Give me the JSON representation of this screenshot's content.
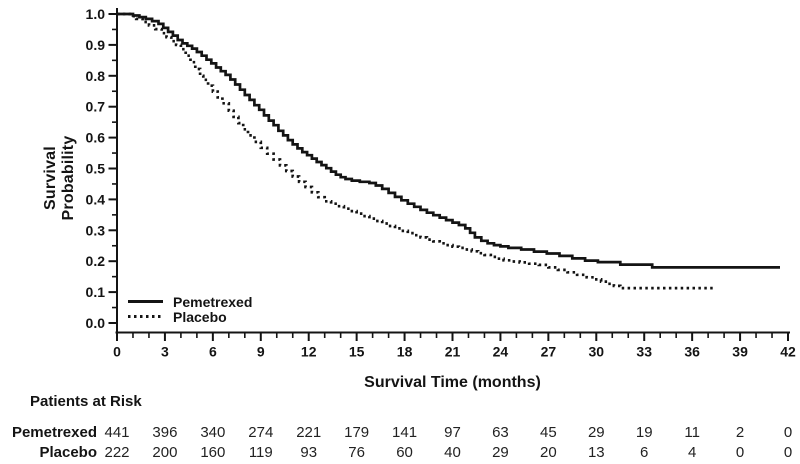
{
  "figure": {
    "background": "#ffffff",
    "ink": "#141414",
    "number_ink": "#222222"
  },
  "chart_data": {
    "type": "line",
    "subtype": "kaplan-meier-step",
    "title": "",
    "xlabel": "Survival Time (months)",
    "ylabel": "Survival Probability",
    "xlim": [
      0,
      42
    ],
    "ylim": [
      0.0,
      1.0
    ],
    "grid": false,
    "legend_position": "inside-lower-left",
    "xticks": [
      {
        "v": 0,
        "label": "0"
      },
      {
        "v": 3,
        "label": "3"
      },
      {
        "v": 6,
        "label": "6"
      },
      {
        "v": 9,
        "label": "9"
      },
      {
        "v": 12,
        "label": "12"
      },
      {
        "v": 15,
        "label": "15"
      },
      {
        "v": 18,
        "label": "18"
      },
      {
        "v": 21,
        "label": "21"
      },
      {
        "v": 24,
        "label": "24"
      },
      {
        "v": 27,
        "label": "27"
      },
      {
        "v": 30,
        "label": "30"
      },
      {
        "v": 33,
        "label": "33"
      },
      {
        "v": 36,
        "label": "36"
      },
      {
        "v": 39,
        "label": "39"
      },
      {
        "v": 42,
        "label": "42"
      }
    ],
    "yticks": [
      {
        "v": 0.0,
        "label": "0.0"
      },
      {
        "v": 0.1,
        "label": "0.1"
      },
      {
        "v": 0.2,
        "label": "0.2"
      },
      {
        "v": 0.3,
        "label": "0.3"
      },
      {
        "v": 0.4,
        "label": "0.4"
      },
      {
        "v": 0.5,
        "label": "0.5"
      },
      {
        "v": 0.6,
        "label": "0.6"
      },
      {
        "v": 0.7,
        "label": "0.7"
      },
      {
        "v": 0.8,
        "label": "0.8"
      },
      {
        "v": 0.9,
        "label": "0.9"
      },
      {
        "v": 1.0,
        "label": "1.0"
      }
    ],
    "series": [
      {
        "name": "Pemetrexed",
        "line": "solid",
        "color": "#141414",
        "points": [
          [
            0,
            1.0
          ],
          [
            0.9,
            1.0
          ],
          [
            1.0,
            0.995
          ],
          [
            1.4,
            0.99
          ],
          [
            1.8,
            0.984
          ],
          [
            2.2,
            0.977
          ],
          [
            2.6,
            0.968
          ],
          [
            2.9,
            0.955
          ],
          [
            3.2,
            0.942
          ],
          [
            3.5,
            0.93
          ],
          [
            3.8,
            0.916
          ],
          [
            4.1,
            0.905
          ],
          [
            4.4,
            0.897
          ],
          [
            4.7,
            0.888
          ],
          [
            5.0,
            0.877
          ],
          [
            5.3,
            0.865
          ],
          [
            5.6,
            0.852
          ],
          [
            5.9,
            0.84
          ],
          [
            6.2,
            0.827
          ],
          [
            6.5,
            0.815
          ],
          [
            6.8,
            0.803
          ],
          [
            7.1,
            0.788
          ],
          [
            7.4,
            0.772
          ],
          [
            7.7,
            0.755
          ],
          [
            8.0,
            0.738
          ],
          [
            8.3,
            0.722
          ],
          [
            8.6,
            0.705
          ],
          [
            8.9,
            0.69
          ],
          [
            9.2,
            0.672
          ],
          [
            9.5,
            0.655
          ],
          [
            9.8,
            0.64
          ],
          [
            10.1,
            0.622
          ],
          [
            10.4,
            0.607
          ],
          [
            10.7,
            0.592
          ],
          [
            11.0,
            0.578
          ],
          [
            11.3,
            0.565
          ],
          [
            11.6,
            0.553
          ],
          [
            11.9,
            0.543
          ],
          [
            12.2,
            0.532
          ],
          [
            12.5,
            0.521
          ],
          [
            12.8,
            0.511
          ],
          [
            13.1,
            0.501
          ],
          [
            13.4,
            0.49
          ],
          [
            13.7,
            0.48
          ],
          [
            14.0,
            0.472
          ],
          [
            14.3,
            0.466
          ],
          [
            14.7,
            0.461
          ],
          [
            15.2,
            0.457
          ],
          [
            15.8,
            0.453
          ],
          [
            16.2,
            0.445
          ],
          [
            16.6,
            0.434
          ],
          [
            17.0,
            0.421
          ],
          [
            17.4,
            0.408
          ],
          [
            17.8,
            0.397
          ],
          [
            18.2,
            0.386
          ],
          [
            18.6,
            0.376
          ],
          [
            19.0,
            0.366
          ],
          [
            19.4,
            0.357
          ],
          [
            19.8,
            0.349
          ],
          [
            20.2,
            0.341
          ],
          [
            20.6,
            0.333
          ],
          [
            21.0,
            0.325
          ],
          [
            21.4,
            0.317
          ],
          [
            21.8,
            0.306
          ],
          [
            22.1,
            0.292
          ],
          [
            22.4,
            0.277
          ],
          [
            22.8,
            0.266
          ],
          [
            23.2,
            0.258
          ],
          [
            23.6,
            0.252
          ],
          [
            24.0,
            0.248
          ],
          [
            24.5,
            0.243
          ],
          [
            25.3,
            0.238
          ],
          [
            26.1,
            0.231
          ],
          [
            26.9,
            0.225
          ],
          [
            27.7,
            0.217
          ],
          [
            28.5,
            0.209
          ],
          [
            29.3,
            0.202
          ],
          [
            30.1,
            0.197
          ],
          [
            31.5,
            0.189
          ],
          [
            33.5,
            0.18
          ],
          [
            41.5,
            0.18
          ]
        ]
      },
      {
        "name": "Placebo",
        "line": "dotted",
        "color": "#141414",
        "points": [
          [
            0,
            1.0
          ],
          [
            0.8,
            0.993
          ],
          [
            1.2,
            0.984
          ],
          [
            1.6,
            0.974
          ],
          [
            2.0,
            0.963
          ],
          [
            2.4,
            0.951
          ],
          [
            2.8,
            0.938
          ],
          [
            3.1,
            0.925
          ],
          [
            3.4,
            0.912
          ],
          [
            3.7,
            0.9
          ],
          [
            4.0,
            0.886
          ],
          [
            4.3,
            0.865
          ],
          [
            4.6,
            0.844
          ],
          [
            4.9,
            0.822
          ],
          [
            5.2,
            0.8
          ],
          [
            5.4,
            0.787
          ],
          [
            5.7,
            0.768
          ],
          [
            6.0,
            0.749
          ],
          [
            6.3,
            0.73
          ],
          [
            6.6,
            0.711
          ],
          [
            7.0,
            0.687
          ],
          [
            7.3,
            0.667
          ],
          [
            7.6,
            0.647
          ],
          [
            7.9,
            0.627
          ],
          [
            8.2,
            0.607
          ],
          [
            8.6,
            0.586
          ],
          [
            9.0,
            0.567
          ],
          [
            9.4,
            0.548
          ],
          [
            9.8,
            0.529
          ],
          [
            10.2,
            0.51
          ],
          [
            10.6,
            0.492
          ],
          [
            11.0,
            0.474
          ],
          [
            11.4,
            0.457
          ],
          [
            11.8,
            0.44
          ],
          [
            12.2,
            0.423
          ],
          [
            12.6,
            0.407
          ],
          [
            13.0,
            0.394
          ],
          [
            13.4,
            0.386
          ],
          [
            13.8,
            0.378
          ],
          [
            14.2,
            0.37
          ],
          [
            14.6,
            0.362
          ],
          [
            15.0,
            0.354
          ],
          [
            15.4,
            0.346
          ],
          [
            15.8,
            0.338
          ],
          [
            16.2,
            0.33
          ],
          [
            16.6,
            0.322
          ],
          [
            17.0,
            0.314
          ],
          [
            17.4,
            0.306
          ],
          [
            17.8,
            0.298
          ],
          [
            18.2,
            0.291
          ],
          [
            18.6,
            0.284
          ],
          [
            19.0,
            0.277
          ],
          [
            19.4,
            0.27
          ],
          [
            19.8,
            0.264
          ],
          [
            20.2,
            0.258
          ],
          [
            20.6,
            0.252
          ],
          [
            21.0,
            0.247
          ],
          [
            21.4,
            0.243
          ],
          [
            21.8,
            0.238
          ],
          [
            22.2,
            0.232
          ],
          [
            22.6,
            0.226
          ],
          [
            23.0,
            0.22
          ],
          [
            23.4,
            0.214
          ],
          [
            23.8,
            0.208
          ],
          [
            24.2,
            0.203
          ],
          [
            24.7,
            0.199
          ],
          [
            25.2,
            0.196
          ],
          [
            25.8,
            0.192
          ],
          [
            26.4,
            0.188
          ],
          [
            27.0,
            0.18
          ],
          [
            27.6,
            0.172
          ],
          [
            28.2,
            0.164
          ],
          [
            28.8,
            0.156
          ],
          [
            29.4,
            0.148
          ],
          [
            29.9,
            0.141
          ],
          [
            30.3,
            0.134
          ],
          [
            30.7,
            0.127
          ],
          [
            31.1,
            0.12
          ],
          [
            31.5,
            0.113
          ],
          [
            37.5,
            0.113
          ]
        ]
      }
    ],
    "at_risk_table": {
      "title": "Patients at Risk",
      "times": [
        0,
        3,
        6,
        9,
        12,
        15,
        18,
        21,
        24,
        27,
        30,
        33,
        36,
        39,
        42
      ],
      "rows": [
        {
          "label": "Pemetrexed",
          "counts": [
            "441",
            "396",
            "340",
            "274",
            "221",
            "179",
            "141",
            "97",
            "63",
            "45",
            "29",
            "19",
            "11",
            "2",
            "0"
          ]
        },
        {
          "label": "Placebo",
          "counts": [
            "222",
            "200",
            "160",
            "119",
            "93",
            "76",
            "60",
            "40",
            "29",
            "20",
            "13",
            "6",
            "4",
            "0",
            "0"
          ]
        }
      ]
    }
  }
}
